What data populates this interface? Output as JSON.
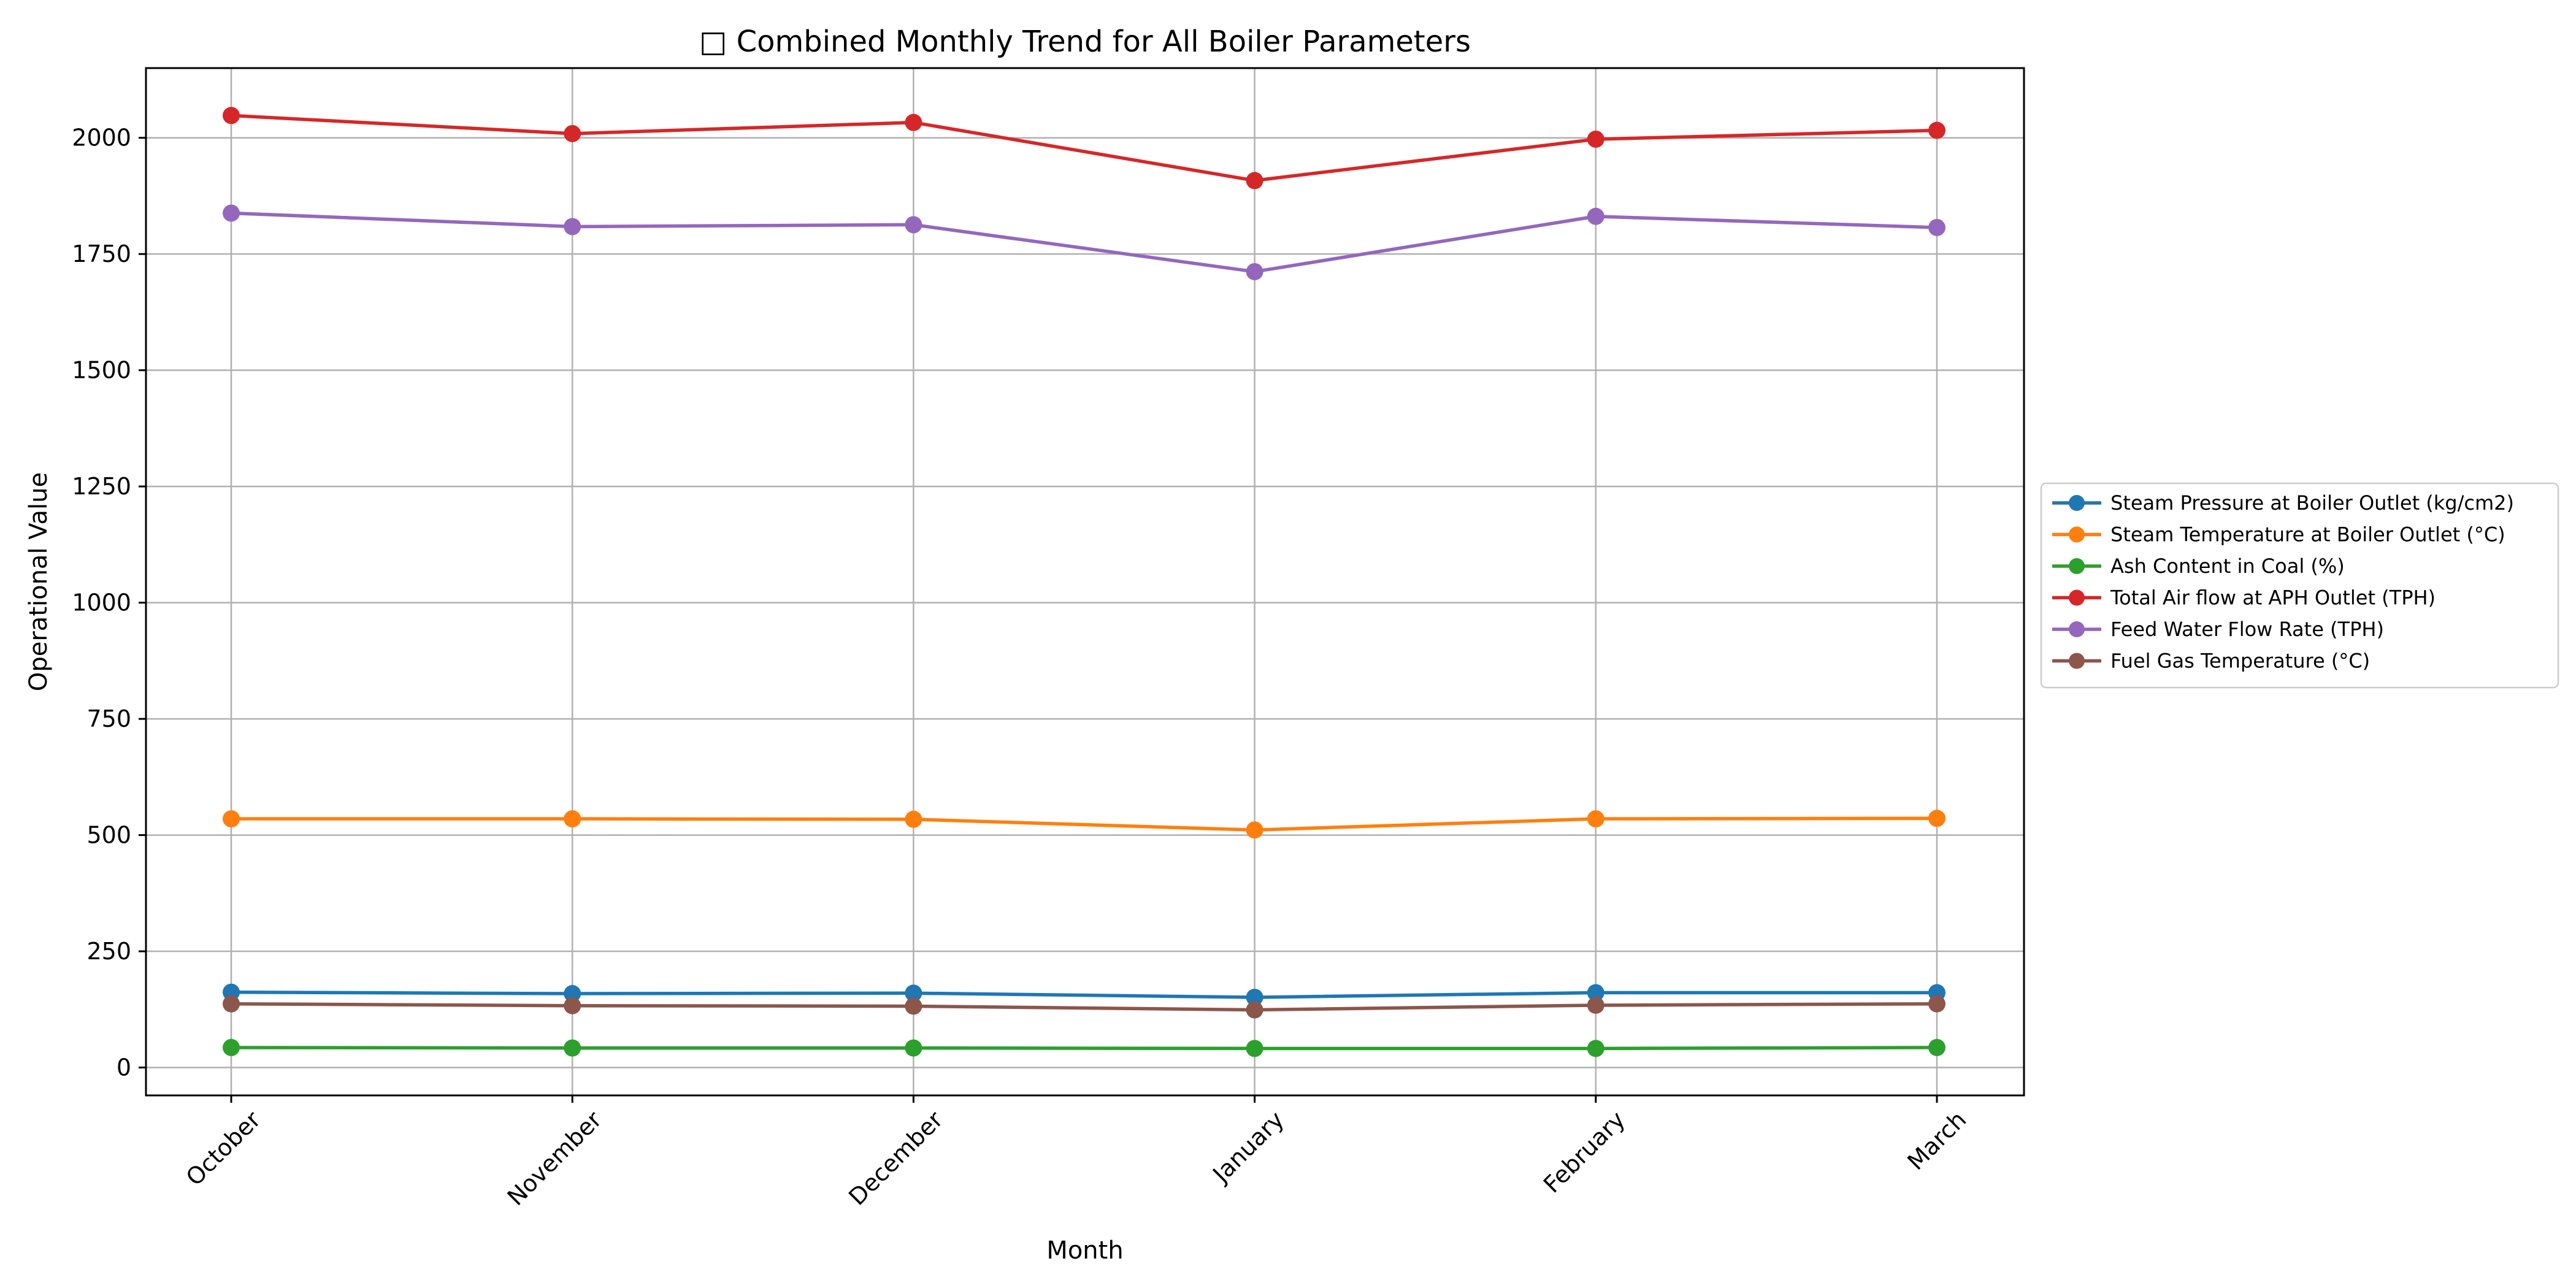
{
  "chart_data": {
    "type": "line",
    "title": "□ Combined Monthly Trend for All Boiler Parameters",
    "xlabel": "Month",
    "ylabel": "Operational Value",
    "categories": [
      "October",
      "November",
      "December",
      "January",
      "February",
      "March"
    ],
    "ylim": [
      -60,
      2150
    ],
    "yticks": [
      0,
      250,
      500,
      750,
      1000,
      1250,
      1500,
      1750,
      2000
    ],
    "grid": true,
    "legend_position": "right",
    "series": [
      {
        "name": "Steam Pressure at Boiler Outlet (kg/cm2)",
        "color": "#1f77b4",
        "values": [
          162,
          159,
          160,
          151,
          161,
          161
        ]
      },
      {
        "name": "Steam Temperature at Boiler Outlet (°C)",
        "color": "#ff7f0e",
        "values": [
          535,
          535,
          534,
          511,
          535,
          536
        ]
      },
      {
        "name": "Ash Content in Coal (%)",
        "color": "#2ca02c",
        "values": [
          43,
          42,
          42,
          41,
          41,
          43
        ]
      },
      {
        "name": "Total Air flow at APH Outlet (TPH)",
        "color": "#d62728",
        "values": [
          2048,
          2009,
          2033,
          1908,
          1997,
          2016
        ]
      },
      {
        "name": "Feed Water Flow Rate (TPH)",
        "color": "#9467bd",
        "values": [
          1838,
          1809,
          1813,
          1712,
          1831,
          1807
        ]
      },
      {
        "name": "Fuel Gas Temperature (°C)",
        "color": "#8c564b",
        "values": [
          137,
          133,
          132,
          124,
          134,
          137
        ]
      }
    ]
  }
}
